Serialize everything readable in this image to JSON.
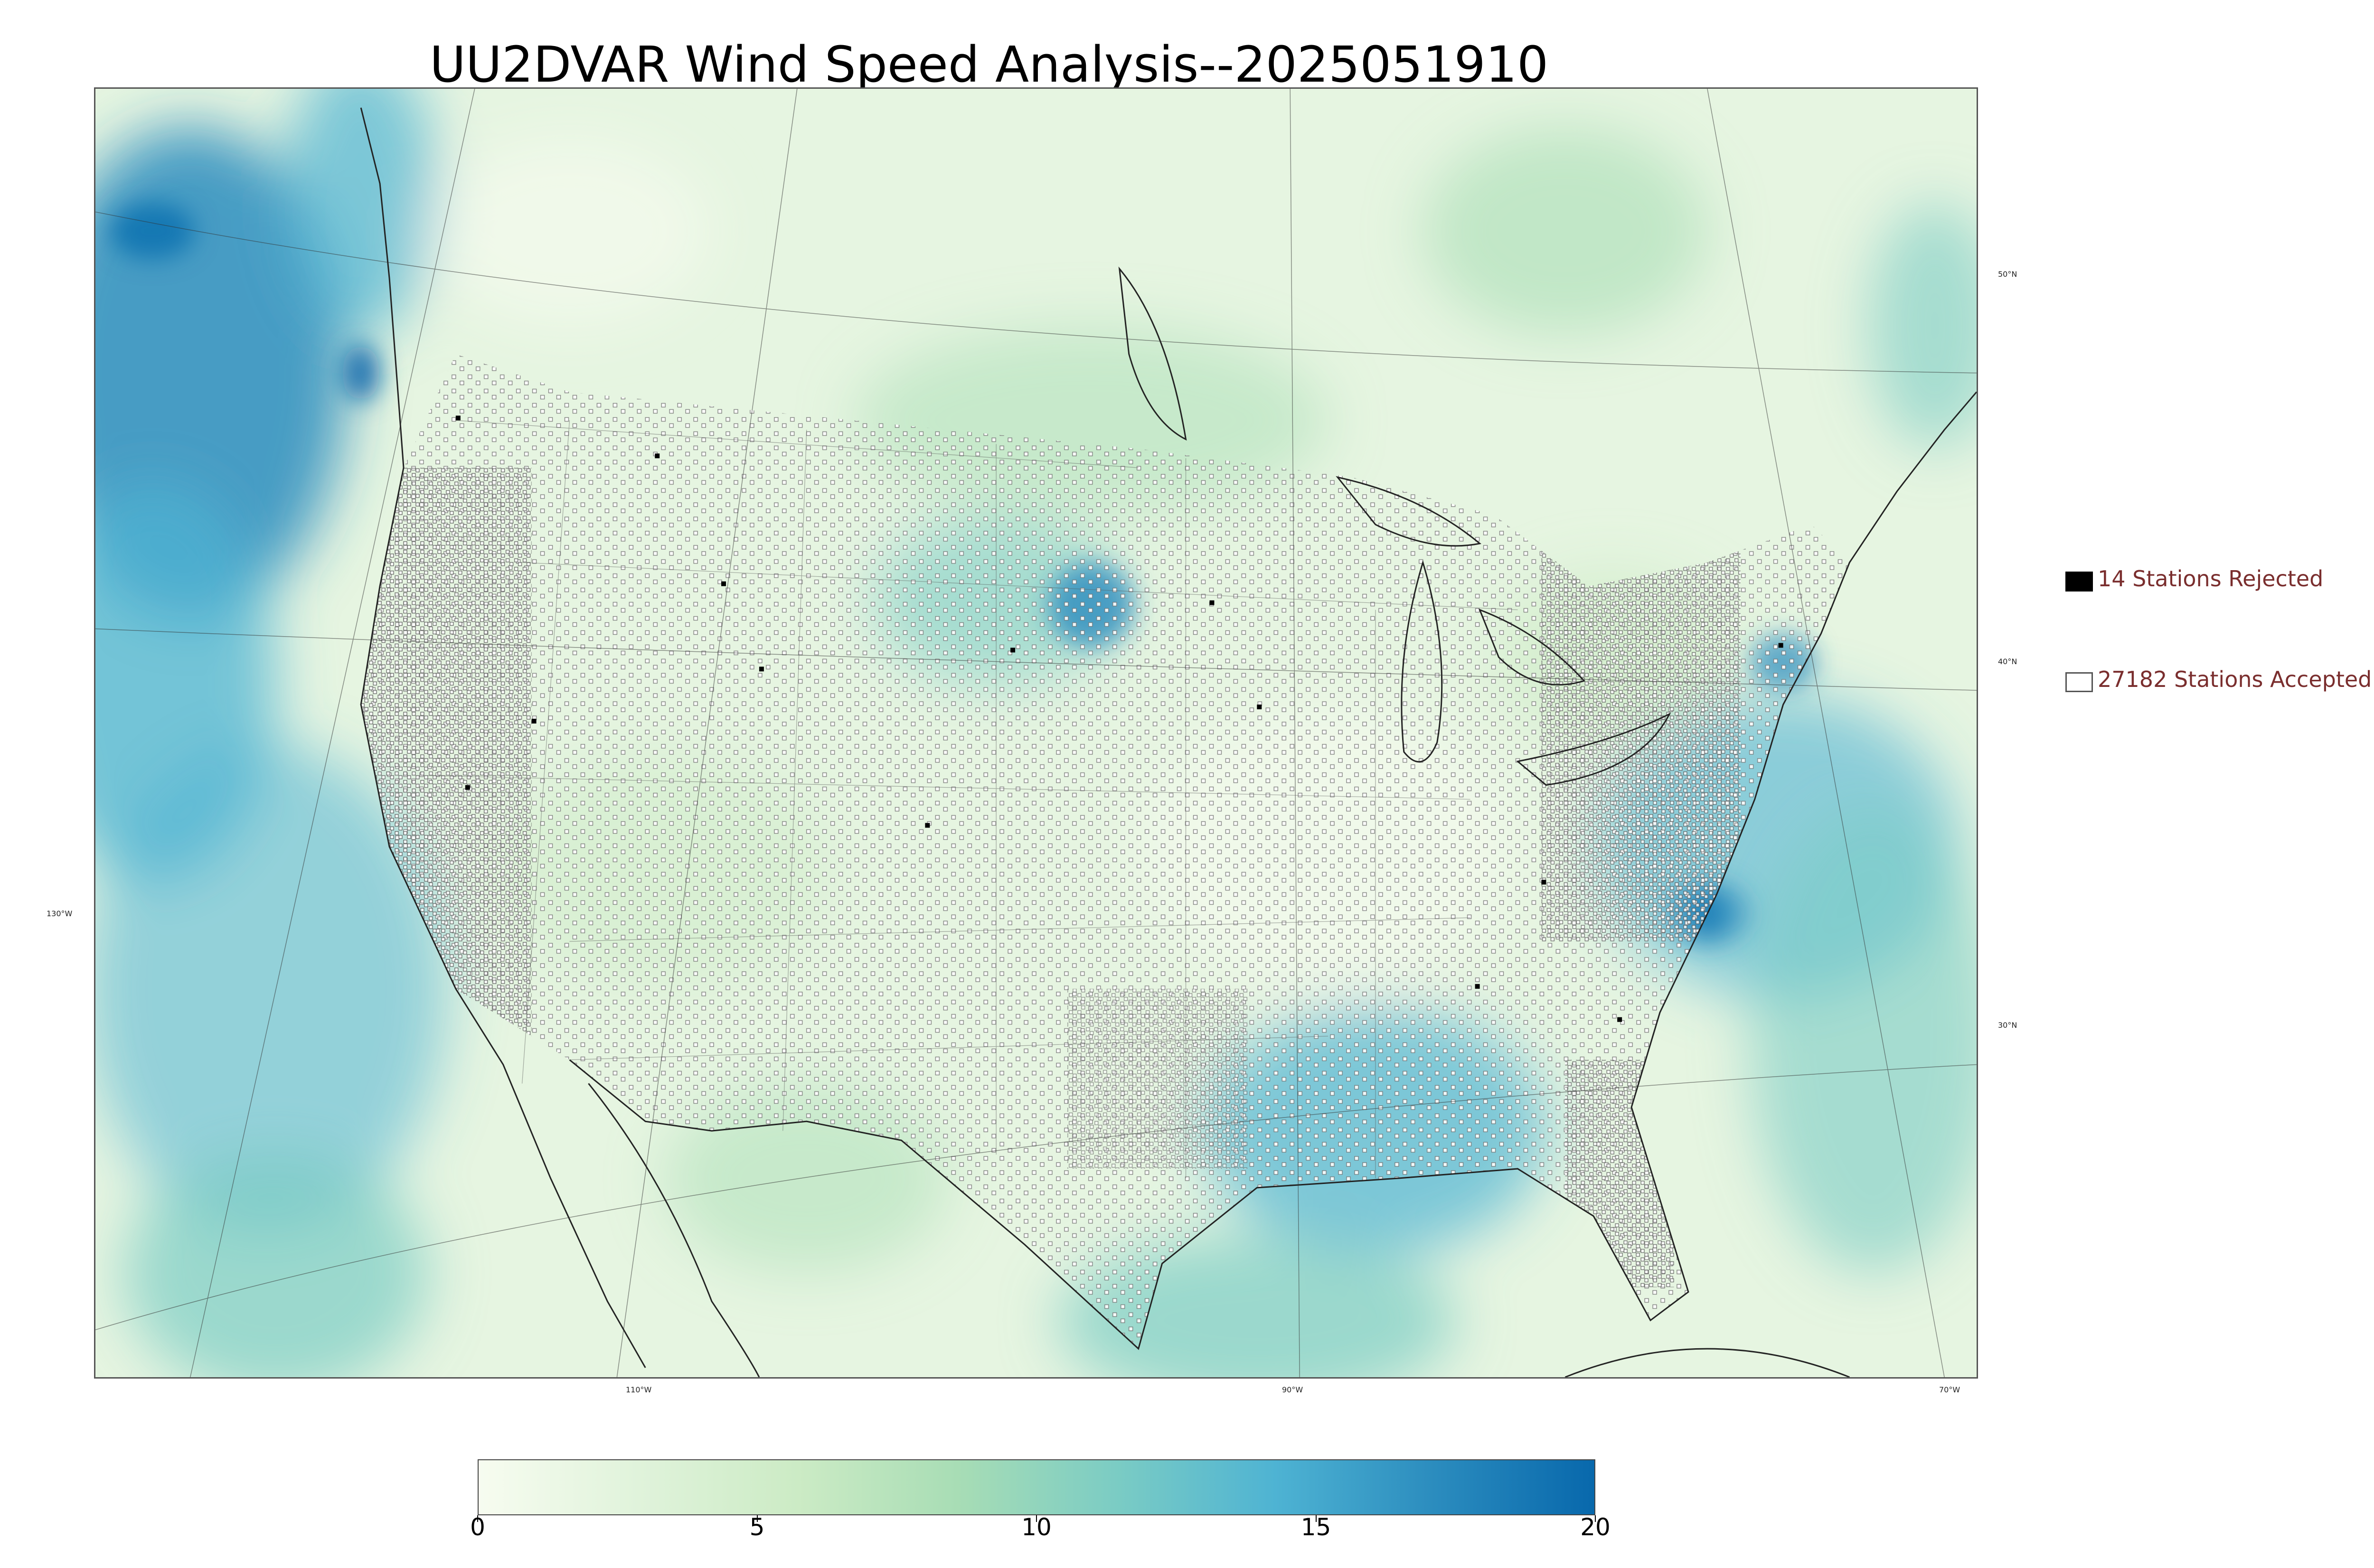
{
  "title": "UU2DVAR Wind Speed Analysis--2025051910",
  "map": {
    "lon_labels": [
      "130°W",
      "110°W",
      "90°W",
      "70°W"
    ],
    "lat_labels": [
      "50°N",
      "40°N",
      "30°N"
    ]
  },
  "legend": {
    "rejected_label": "14 Stations Rejected",
    "accepted_label": "27182 Stations Accepted"
  },
  "colorbar": {
    "min": 0,
    "max": 20,
    "tick_labels": [
      "0",
      "5",
      "10",
      "15",
      "20"
    ],
    "colors": [
      "#f7fcf0",
      "#e0f3db",
      "#ccebc5",
      "#a8ddb5",
      "#7bccc4",
      "#4eb3d3",
      "#2b8cbe",
      "#0868ac"
    ]
  }
}
